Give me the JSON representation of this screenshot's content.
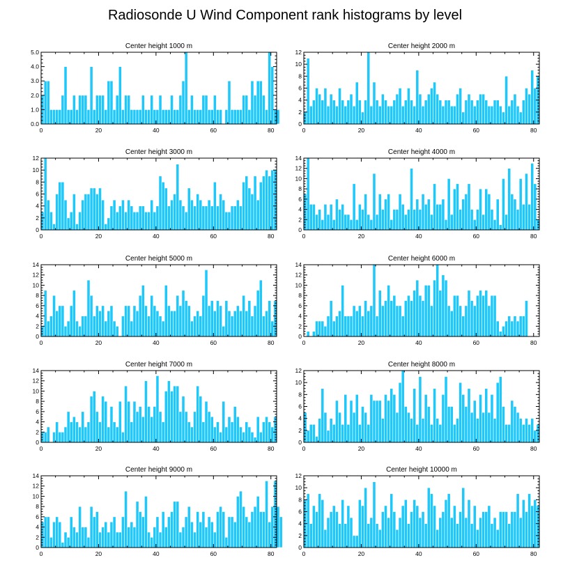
{
  "chart_data": {
    "title": "Radiosonde U Wind Component rank histograms by level",
    "type": "bar",
    "xlim": [
      0,
      82
    ],
    "x_ticks": [
      0,
      20,
      40,
      60,
      80
    ],
    "panels": [
      {
        "title": "Center height 1000 m",
        "ylim": [
          0,
          5
        ],
        "y_ticks": [
          "0.0",
          "1.0",
          "2.0",
          "3.0",
          "4.0",
          "5.0"
        ],
        "y_step": 1,
        "values": [
          2,
          3,
          3,
          1,
          1,
          1,
          1,
          2,
          4,
          1,
          1,
          2,
          1,
          2,
          2,
          2,
          1,
          4,
          1,
          2,
          2,
          2,
          1,
          3,
          3,
          1,
          2,
          4,
          1,
          2,
          2,
          1,
          1,
          1,
          1,
          2,
          1,
          1,
          2,
          1,
          1,
          2,
          1,
          1,
          1,
          2,
          1,
          1,
          2,
          3,
          5,
          1,
          2,
          1,
          1,
          1,
          2,
          2,
          1,
          1,
          2,
          1,
          1,
          0,
          1,
          3,
          1,
          1,
          1,
          1,
          2,
          2,
          1,
          3,
          2,
          3,
          3,
          2,
          1,
          5,
          4,
          1,
          1
        ]
      },
      {
        "title": "Center height 2000 m",
        "ylim": [
          0,
          12
        ],
        "y_ticks": [
          "0",
          "2",
          "4",
          "6",
          "8",
          "10",
          "12"
        ],
        "y_step": 1,
        "values": [
          2,
          11,
          3,
          4,
          6,
          5,
          4,
          6,
          3,
          5,
          4,
          3,
          6,
          4,
          3,
          4,
          5,
          3,
          7,
          4,
          2,
          4,
          12,
          3,
          7,
          4,
          3,
          5,
          4,
          3,
          3,
          4,
          5,
          6,
          3,
          4,
          6,
          4,
          3,
          9,
          5,
          3,
          4,
          5,
          6,
          7,
          5,
          4,
          3,
          4,
          4,
          3,
          3,
          5,
          6,
          2,
          4,
          5,
          4,
          3,
          4,
          5,
          5,
          4,
          3,
          3,
          4,
          4,
          3,
          2,
          8,
          3,
          4,
          5,
          3,
          2,
          4,
          6,
          5,
          9,
          6,
          8
        ]
      },
      {
        "title": "Center height 3000 m",
        "ylim": [
          0,
          12
        ],
        "y_ticks": [
          "0",
          "2",
          "4",
          "6",
          "8",
          "10",
          "12"
        ],
        "y_step": 1,
        "values": [
          3,
          12,
          5,
          3,
          1,
          6,
          8,
          8,
          5,
          2,
          3,
          6,
          1,
          3,
          5,
          6,
          6,
          7,
          7,
          6,
          7,
          5,
          1,
          2,
          4,
          5,
          3,
          4,
          5,
          3,
          5,
          4,
          3,
          3,
          4,
          4,
          3,
          3,
          5,
          3,
          4,
          9,
          8,
          7,
          4,
          5,
          6,
          11,
          5,
          4,
          3,
          7,
          5,
          4,
          6,
          5,
          4,
          4,
          5,
          4,
          8,
          4,
          6,
          5,
          3,
          3,
          4,
          4,
          5,
          4,
          8,
          9,
          7,
          6,
          9,
          5,
          8,
          9,
          10,
          9,
          10,
          10
        ]
      },
      {
        "title": "Center height 4000 m",
        "ylim": [
          0,
          14
        ],
        "y_ticks": [
          "0",
          "2",
          "4",
          "6",
          "8",
          "10",
          "12",
          "14"
        ],
        "y_step": 1,
        "values": [
          7,
          14,
          5,
          5,
          3,
          4,
          2,
          5,
          3,
          5,
          2,
          6,
          4,
          5,
          3,
          3,
          2,
          9,
          2,
          5,
          4,
          7,
          3,
          2,
          11,
          3,
          7,
          4,
          6,
          7,
          2,
          4,
          4,
          7,
          5,
          3,
          4,
          12,
          4,
          6,
          4,
          7,
          5,
          6,
          3,
          9,
          5,
          5,
          6,
          2,
          10,
          3,
          8,
          9,
          4,
          6,
          7,
          9,
          4,
          2,
          4,
          8,
          3,
          8,
          7,
          4,
          2,
          6,
          1,
          10,
          3,
          12,
          7,
          6,
          4,
          10,
          5,
          11,
          5,
          13,
          9,
          2
        ]
      },
      {
        "title": "Center height 5000 m",
        "ylim": [
          0,
          14
        ],
        "y_ticks": [
          "0",
          "2",
          "4",
          "6",
          "8",
          "10",
          "12",
          "14"
        ],
        "y_step": 1,
        "values": [
          2,
          9,
          3,
          4,
          8,
          5,
          6,
          6,
          2,
          3,
          6,
          9,
          3,
          2,
          4,
          4,
          11,
          8,
          4,
          6,
          5,
          6,
          3,
          5,
          6,
          3,
          2,
          0,
          4,
          6,
          6,
          3,
          6,
          5,
          8,
          10,
          6,
          4,
          8,
          6,
          5,
          4,
          3,
          10,
          6,
          5,
          5,
          8,
          6,
          9,
          7,
          6,
          3,
          4,
          5,
          4,
          8,
          13,
          6,
          7,
          5,
          7,
          6,
          2,
          7,
          5,
          4,
          5,
          6,
          5,
          8,
          5,
          7,
          4,
          6,
          9,
          11,
          4,
          5,
          7,
          3,
          7
        ]
      },
      {
        "title": "Center height 6000 m",
        "ylim": [
          0,
          14
        ],
        "y_ticks": [
          "0",
          "2",
          "4",
          "6",
          "8",
          "10",
          "12",
          "14"
        ],
        "y_step": 1,
        "values": [
          0,
          1,
          0,
          1,
          3,
          3,
          3,
          2,
          4,
          7,
          3,
          4,
          5,
          10,
          4,
          4,
          4,
          6,
          5,
          6,
          4,
          7,
          5,
          6,
          14,
          4,
          9,
          6,
          7,
          10,
          7,
          8,
          6,
          6,
          4,
          7,
          8,
          7,
          9,
          11,
          8,
          7,
          10,
          10,
          6,
          11,
          14,
          9,
          12,
          11,
          6,
          5,
          8,
          8,
          6,
          4,
          6,
          9,
          7,
          6,
          8,
          9,
          8,
          9,
          6,
          8,
          8,
          3,
          1,
          2,
          3,
          4,
          3,
          4,
          3,
          4,
          4,
          7
        ]
      },
      {
        "title": "Center height 7000 m",
        "ylim": [
          0,
          14
        ],
        "y_ticks": [
          "0",
          "2",
          "4",
          "6",
          "8",
          "10",
          "12",
          "14"
        ],
        "y_step": 1,
        "values": [
          2,
          2,
          3,
          0,
          2,
          4,
          2,
          2,
          3,
          6,
          4,
          5,
          4,
          3,
          6,
          3,
          4,
          9,
          10,
          6,
          4,
          9,
          8,
          3,
          7,
          4,
          3,
          8,
          2,
          11,
          8,
          4,
          8,
          6,
          7,
          5,
          12,
          7,
          5,
          7,
          13,
          6,
          4,
          10,
          12,
          10,
          11,
          11,
          6,
          9,
          6,
          4,
          3,
          6,
          11,
          9,
          4,
          8,
          6,
          5,
          3,
          4,
          2,
          8,
          3,
          5,
          4,
          7,
          5,
          3,
          2,
          4,
          3,
          2,
          1,
          5,
          2,
          4,
          5,
          4,
          3,
          5
        ]
      },
      {
        "title": "Center height 8000 m",
        "ylim": [
          0,
          12
        ],
        "y_ticks": [
          "0",
          "2",
          "4",
          "6",
          "8",
          "10",
          "12"
        ],
        "y_step": 1,
        "values": [
          5,
          2,
          3,
          3,
          1,
          4,
          9,
          5,
          2,
          4,
          3,
          7,
          5,
          3,
          8,
          3,
          7,
          5,
          8,
          3,
          6,
          5,
          3,
          8,
          7,
          7,
          7,
          4,
          8,
          7,
          9,
          8,
          5,
          10,
          12,
          6,
          5,
          4,
          9,
          3,
          11,
          4,
          8,
          6,
          3,
          9,
          4,
          3,
          8,
          11,
          6,
          6,
          3,
          4,
          10,
          8,
          6,
          9,
          5,
          7,
          4,
          8,
          5,
          9,
          5,
          8,
          4,
          10,
          11,
          6,
          3,
          3,
          7,
          6,
          5,
          4,
          3,
          4,
          3,
          4,
          2,
          3
        ]
      },
      {
        "title": "Center height 9000 m",
        "ylim": [
          0,
          14
        ],
        "y_ticks": [
          "0",
          "2",
          "4",
          "6",
          "8",
          "10",
          "12",
          "14"
        ],
        "y_step": 1,
        "values": [
          5,
          6,
          6,
          2,
          5,
          6,
          5,
          1,
          3,
          2,
          6,
          4,
          3,
          8,
          4,
          4,
          2,
          8,
          6,
          7,
          3,
          4,
          5,
          3,
          5,
          6,
          3,
          3,
          6,
          11,
          4,
          5,
          4,
          9,
          7,
          6,
          10,
          3,
          2,
          4,
          6,
          3,
          7,
          4,
          6,
          7,
          9,
          9,
          3,
          4,
          6,
          8,
          5,
          3,
          7,
          5,
          7,
          4,
          6,
          5,
          3,
          7,
          8,
          7,
          2,
          6,
          6,
          5,
          10,
          11,
          8,
          6,
          5,
          7,
          8,
          10,
          7,
          7,
          13,
          5,
          8,
          13,
          8,
          6
        ]
      },
      {
        "title": "Center height 10000 m",
        "ylim": [
          0,
          12
        ],
        "y_ticks": [
          "0",
          "2",
          "4",
          "6",
          "8",
          "10",
          "12"
        ],
        "y_step": 1,
        "values": [
          8,
          9,
          4,
          7,
          6,
          9,
          8,
          3,
          5,
          6,
          7,
          6,
          4,
          8,
          4,
          7,
          5,
          2,
          2,
          8,
          7,
          10,
          4,
          5,
          11,
          4,
          3,
          6,
          7,
          5,
          9,
          6,
          3,
          5,
          7,
          8,
          4,
          6,
          8,
          7,
          5,
          6,
          4,
          10,
          9,
          7,
          3,
          5,
          6,
          8,
          9,
          5,
          7,
          4,
          6,
          10,
          5,
          8,
          4,
          7,
          3,
          5,
          6,
          6,
          7,
          4,
          5,
          3,
          6,
          6,
          6,
          4,
          6,
          6,
          9,
          5,
          8,
          6,
          9,
          7,
          8,
          7
        ]
      }
    ]
  }
}
